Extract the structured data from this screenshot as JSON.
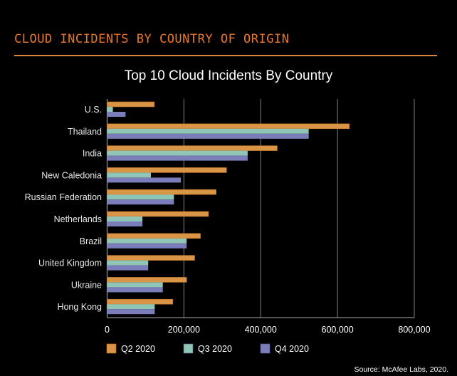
{
  "header": {
    "section_title": "CLOUD INCIDENTS BY COUNTRY OF ORIGIN"
  },
  "source": "Source: McAfee Labs, 2020.",
  "colors": {
    "accent": "#E8782A",
    "q2": "#D99445",
    "q3": "#8EC5B4",
    "q4": "#7B7DBB",
    "grid": "#6b6b6b"
  },
  "chart_data": {
    "type": "bar",
    "orientation": "horizontal",
    "title": "Top 10 Cloud Incidents By Country",
    "xlabel": "",
    "ylabel": "",
    "xlim": [
      0,
      800000
    ],
    "xticks": [
      0,
      200000,
      400000,
      600000,
      800000
    ],
    "xtick_labels": [
      "0",
      "200,000",
      "400,000",
      "600,000",
      "800,000"
    ],
    "grid": true,
    "legend_position": "bottom-left",
    "categories": [
      "U.S.",
      "Thailand",
      "India",
      "New Caledonia",
      "Russian Federation",
      "Netherlands",
      "Brazil",
      "United Kingdom",
      "Ukraine",
      "Hong Kong"
    ],
    "series": [
      {
        "name": "Q2 2020",
        "color": "#D99445",
        "values": [
          123000,
          631000,
          443000,
          311000,
          284000,
          264000,
          243000,
          228000,
          207000,
          171000
        ]
      },
      {
        "name": "Q3 2020",
        "color": "#8EC5B4",
        "values": [
          15000,
          525000,
          366000,
          114000,
          174000,
          92000,
          207000,
          107000,
          145000,
          124000
        ]
      },
      {
        "name": "Q4 2020",
        "color": "#7B7DBB",
        "values": [
          48000,
          525000,
          366000,
          192000,
          174000,
          92000,
          207000,
          107000,
          145000,
          124000
        ]
      }
    ]
  }
}
